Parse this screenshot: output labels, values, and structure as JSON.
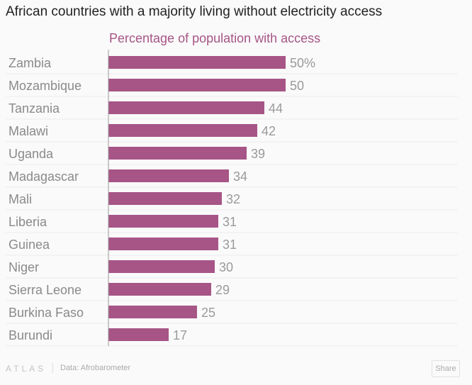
{
  "chart_data": {
    "type": "bar",
    "orientation": "horizontal",
    "title": "African countries with a majority living without electricity access",
    "subtitle": "Percentage of population with access",
    "categories": [
      "Zambia",
      "Mozambique",
      "Tanzania",
      "Malawi",
      "Uganda",
      "Madagascar",
      "Mali",
      "Liberia",
      "Guinea",
      "Niger",
      "Sierra Leone",
      "Burkina Faso",
      "Burundi"
    ],
    "values": [
      50,
      50,
      44,
      42,
      39,
      34,
      32,
      31,
      31,
      30,
      29,
      25,
      17
    ],
    "data_labels": [
      "50%",
      "50",
      "44",
      "42",
      "39",
      "34",
      "32",
      "31",
      "31",
      "30",
      "29",
      "25",
      "17"
    ],
    "xlim": [
      0,
      100
    ],
    "grid": true,
    "bar_color": "#a65586"
  },
  "footer": {
    "logo": "ATLAS",
    "source": "Data: Afrobarometer",
    "share_label": "Share"
  }
}
